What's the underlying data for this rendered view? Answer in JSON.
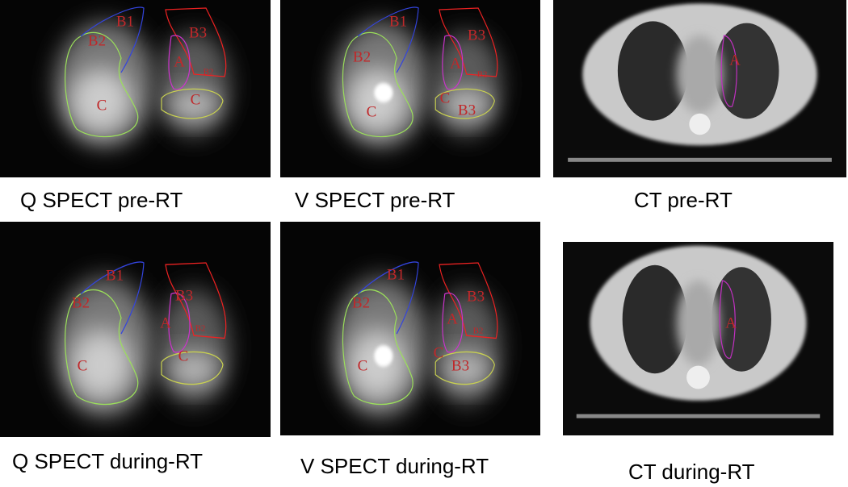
{
  "panels": [
    {
      "caption": "Q SPECT pre-RT",
      "labels": [
        "B1",
        "B2",
        "B3",
        "A",
        "B2",
        "C",
        "C"
      ]
    },
    {
      "caption": "V SPECT pre-RT",
      "labels": [
        "B1",
        "B2",
        "B3",
        "A",
        "B2",
        "C",
        "C",
        "B3"
      ]
    },
    {
      "caption": "CT pre-RT",
      "labels": [
        "A"
      ]
    },
    {
      "caption": "Q SPECT during-RT",
      "labels": [
        "B1",
        "B2",
        "B3",
        "A",
        "B2",
        "C",
        "C"
      ]
    },
    {
      "caption": "V SPECT during-RT",
      "labels": [
        "B1",
        "B2",
        "B3",
        "A",
        "B2",
        "C",
        "C",
        "B3"
      ]
    },
    {
      "caption": "CT during-RT",
      "labels": [
        "A"
      ]
    }
  ]
}
